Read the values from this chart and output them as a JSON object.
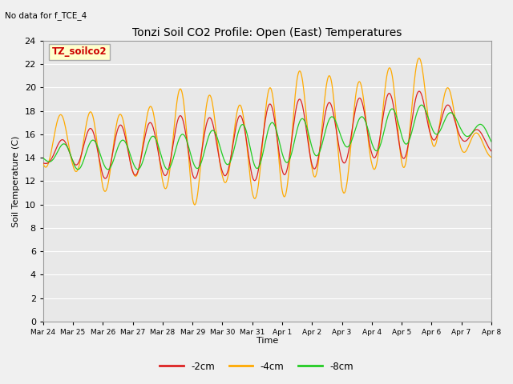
{
  "title": "Tonzi Soil CO2 Profile: Open (East) Temperatures",
  "corner_text": "No data for f_TCE_4",
  "legend_box_text": "TZ_soilco2",
  "ylabel": "Soil Temperature (C)",
  "xlabel": "Time",
  "ylim": [
    0,
    24
  ],
  "yticks": [
    0,
    2,
    4,
    6,
    8,
    10,
    12,
    14,
    16,
    18,
    20,
    22,
    24
  ],
  "bg_color": "#e8e8e8",
  "fig_bg_color": "#f0f0f0",
  "line_colors": {
    "-2cm": "#dd2222",
    "-4cm": "#ffaa00",
    "-8cm": "#22cc22"
  },
  "x_labels": [
    "Mar 24",
    "Mar 25",
    "Mar 26",
    "Mar 27",
    "Mar 28",
    "Mar 29",
    "Mar 30",
    "Mar 31",
    "Apr 1",
    "Apr 2",
    "Apr 3",
    "Apr 4",
    "Apr 5",
    "Apr 6",
    "Apr 7",
    "Apr 8"
  ],
  "peaks_4": [
    17.5,
    17.8,
    18.0,
    17.5,
    19.0,
    20.5,
    18.5,
    18.5,
    21.0,
    21.7,
    20.5,
    20.5,
    22.5,
    22.5,
    18.0,
    14.5
  ],
  "troughs_4": [
    13.2,
    13.0,
    11.0,
    12.5,
    11.5,
    9.8,
    12.0,
    10.5,
    10.5,
    12.5,
    10.8,
    13.0,
    13.0,
    15.0,
    14.5,
    14.0
  ],
  "peaks_2": [
    14.0,
    16.5,
    16.5,
    17.0,
    17.0,
    18.0,
    17.0,
    18.0,
    19.0,
    19.0,
    18.5,
    19.5,
    19.5,
    19.8,
    17.5,
    15.5
  ],
  "troughs_2": [
    13.5,
    13.5,
    12.2,
    12.5,
    12.5,
    12.2,
    12.5,
    12.0,
    12.5,
    13.0,
    13.5,
    14.0,
    13.8,
    15.5,
    15.5,
    14.5
  ],
  "peaks_8": [
    14.5,
    15.5,
    15.5,
    15.5,
    16.0,
    16.0,
    16.5,
    17.0,
    17.0,
    17.5,
    17.5,
    17.5,
    18.5,
    18.5,
    17.5,
    16.5
  ],
  "troughs_8": [
    13.8,
    13.0,
    13.0,
    13.0,
    13.0,
    13.0,
    13.5,
    13.0,
    13.5,
    14.0,
    15.0,
    14.5,
    15.0,
    16.0,
    16.0,
    15.0
  ],
  "peak_hour_4": 14,
  "trough_hour_4": 3,
  "peak_hour_2": 14,
  "trough_hour_2": 4,
  "peak_hour_8": 16,
  "trough_hour_8": 6
}
